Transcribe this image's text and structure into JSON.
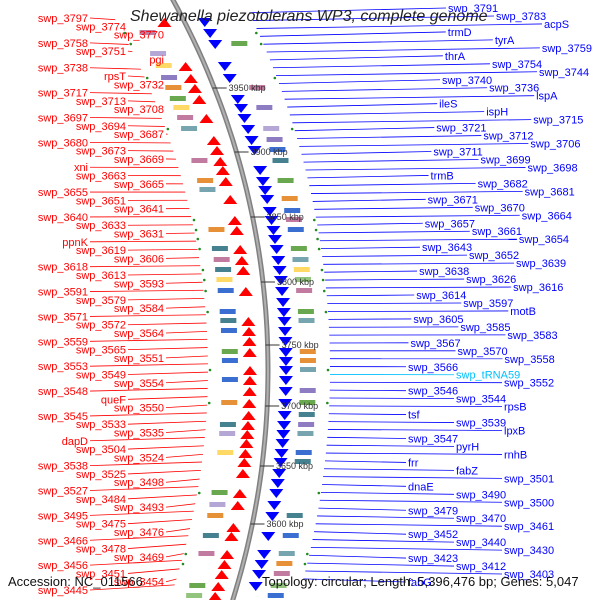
{
  "header": {
    "title": "Shewanella piezotolerans WP3, complete genome"
  },
  "footer": {
    "accession": "Accession: NC_011566",
    "stats": "Topology: circular; Length: 5,396,476 bp; Genes: 5,047"
  },
  "colors": {
    "reverse_strand": "#ff0000",
    "forward_strand": "#0000ff",
    "rna": "#00bfff",
    "backbone": "#808080",
    "tick_dots": "#228b22"
  },
  "kbp_markers": [
    "3950 kbp",
    "3900 kbp",
    "3850 kbp",
    "3800 kbp",
    "3750 kbp",
    "3700 kbp",
    "3650 kbp",
    "3600 kbp"
  ],
  "left_labels": [
    "swp_3797",
    "swp_3774",
    "swp_3770",
    "swp_3758",
    "swp_3751",
    "pgi",
    "swp_3738",
    "rpsT",
    "swp_3732",
    "swp_3717",
    "swp_3713",
    "swp_3708",
    "swp_3697",
    "swp_3694",
    "swp_3687",
    "swp_3680",
    "swp_3673",
    "swp_3669",
    "xni",
    "swp_3663",
    "swp_3665",
    "swp_3655",
    "swp_3651",
    "swp_3641",
    "swp_3640",
    "swp_3633",
    "swp_3631",
    "ppnK",
    "swp_3619",
    "swp_3606",
    "swp_3618",
    "swp_3613",
    "swp_3593",
    "swp_3591",
    "swp_3579",
    "swp_3584",
    "swp_3571",
    "swp_3572",
    "swp_3564",
    "swp_3559",
    "swp_3565",
    "swp_3551",
    "swp_3553",
    "swp_3549",
    "swp_3554",
    "swp_3548",
    "queF",
    "swp_3550",
    "swp_3545",
    "swp_3533",
    "swp_3535",
    "dapD",
    "swp_3504",
    "swp_3524",
    "swp_3538",
    "swp_3525",
    "swp_3498",
    "swp_3527",
    "swp_3484",
    "swp_3493",
    "swp_3495",
    "swp_3475",
    "swp_3476",
    "swp_3466",
    "swp_3478",
    "swp_3469",
    "swp_3456",
    "swp_3451",
    "swp_3454",
    "swp_3445"
  ],
  "right_labels": [
    "swp_3791",
    "swp_3783",
    "acpS",
    "trmD",
    "tyrA",
    "swp_3759",
    "thrA",
    "swp_3754",
    "swp_3744",
    "swp_3740",
    "swp_3736",
    "lspA",
    "ileS",
    "ispH",
    "swp_3715",
    "swp_3721",
    "swp_3712",
    "swp_3706",
    "swp_3711",
    "swp_3699",
    "swp_3698",
    "trmB",
    "swp_3682",
    "swp_3681",
    "swp_3671",
    "swp_3670",
    "swp_3664",
    "swp_3657",
    "swp_3661",
    "swp_3654",
    "swp_3643",
    "swp_3652",
    "swp_3639",
    "swp_3638",
    "swp_3626",
    "swp_3616",
    "swp_3614",
    "swp_3597",
    "motB",
    "swp_3605",
    "swp_3585",
    "swp_3583",
    "swp_3567",
    "swp_3570",
    "swp_3558",
    "swp_3566",
    "swp_tRNA59",
    "swp_3552",
    "swp_3546",
    "swp_3544",
    "rpsB",
    "tsf",
    "swp_3539",
    "lpxB",
    "swp_3547",
    "pyrH",
    "rnhB",
    "frr",
    "fabZ",
    "swp_3501",
    "dnaE",
    "swp_3490",
    "swp_3500",
    "swp_3479",
    "swp_3470",
    "swp_3461",
    "swp_3452",
    "swp_3440",
    "swp_3430",
    "swp_3423",
    "swp_3412",
    "swp_3403",
    "fabG"
  ]
}
